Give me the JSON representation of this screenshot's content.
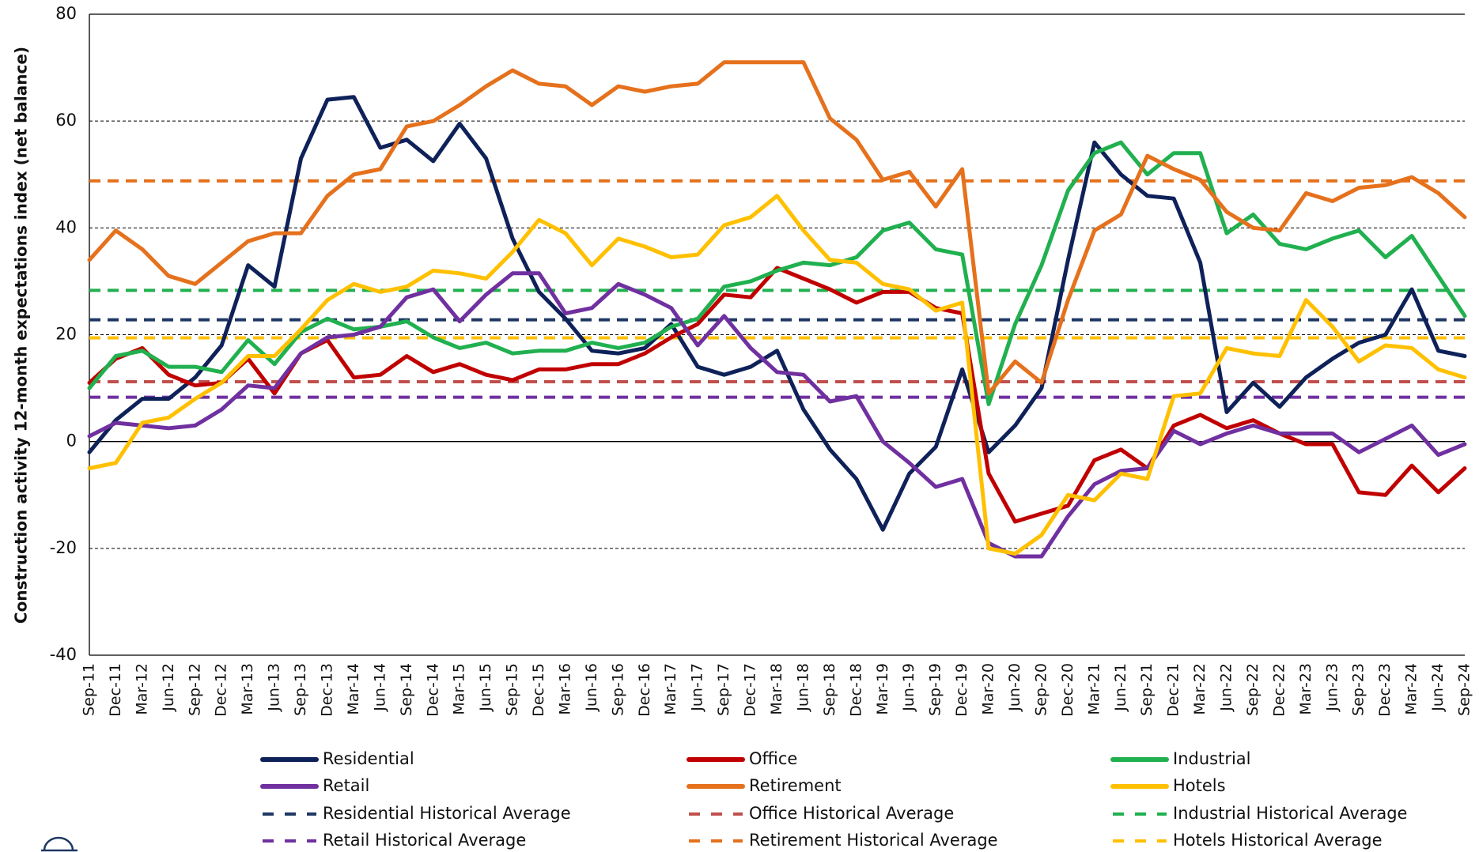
{
  "chart_data": {
    "type": "line",
    "y_label": "Construction activity 12-month expectations index (net balance)",
    "categories": [
      "Sep-11",
      "Dec-11",
      "Mar-12",
      "Jun-12",
      "Sep-12",
      "Dec-12",
      "Mar-13",
      "Jun-13",
      "Sep-13",
      "Dec-13",
      "Mar-14",
      "Jun-14",
      "Sep-14",
      "Dec-14",
      "Mar-15",
      "Jun-15",
      "Sep-15",
      "Dec-15",
      "Mar-16",
      "Jun-16",
      "Sep-16",
      "Dec-16",
      "Mar-17",
      "Jun-17",
      "Sep-17",
      "Dec-17",
      "Mar-18",
      "Jun-18",
      "Sep-18",
      "Dec-18",
      "Mar-19",
      "Jun-19",
      "Sep-19",
      "Dec-19",
      "Mar-20",
      "Jun-20",
      "Sep-20",
      "Dec-20",
      "Mar-21",
      "Jun-21",
      "Sep-21",
      "Dec-21",
      "Mar-22",
      "Jun-22",
      "Sep-22",
      "Dec-22",
      "Mar-23",
      "Jun-23",
      "Sep-23",
      "Dec-23",
      "Mar-24",
      "Jun-24",
      "Sep-24"
    ],
    "series": [
      {
        "name": "Residential",
        "color": "#0e2159",
        "values": [
          -2,
          4,
          8,
          8,
          12,
          18,
          33,
          29,
          53,
          64,
          64.5,
          55,
          56.5,
          52.5,
          59.5,
          53,
          38,
          28,
          23,
          17,
          16.5,
          17.5,
          22,
          14,
          12.5,
          14,
          17,
          6,
          -1.5,
          -7,
          -16.5,
          -6,
          -1,
          13.5,
          -2,
          3,
          10,
          34,
          56,
          50,
          46,
          45.5,
          33.5,
          5.5,
          11,
          6.5,
          12,
          15.5,
          18.5,
          20,
          28.5,
          17,
          16
        ]
      },
      {
        "name": "Office",
        "color": "#c00000",
        "values": [
          11,
          15.5,
          17.5,
          12.5,
          10.5,
          11,
          15.5,
          9,
          16.5,
          19,
          12,
          12.5,
          16,
          13,
          14.5,
          12.5,
          11.5,
          13.5,
          13.5,
          14.5,
          14.5,
          16.5,
          19.5,
          22,
          27.5,
          27,
          32.5,
          30.5,
          28.5,
          26,
          28,
          28,
          25,
          24,
          -6,
          -15,
          -13.5,
          -12,
          -3.5,
          -1.5,
          -5,
          3,
          5,
          2.5,
          4,
          1.5,
          -0.5,
          -0.5,
          -9.5,
          -10,
          -4.5,
          -9.5,
          -5
        ]
      },
      {
        "name": "Industrial",
        "color": "#21b04f",
        "values": [
          10,
          16,
          17,
          14,
          14,
          13,
          19,
          14.5,
          20.5,
          23,
          21,
          21.5,
          22.5,
          19.5,
          17.5,
          18.5,
          16.5,
          17,
          17,
          18.5,
          17.5,
          18.5,
          21.5,
          23,
          29,
          30,
          32,
          33.5,
          33,
          34.5,
          39.5,
          41,
          36,
          35,
          7,
          22,
          33,
          47,
          54,
          56,
          50,
          54,
          54,
          39,
          42.5,
          37,
          36,
          38,
          39.5,
          34.5,
          38.5,
          31,
          23.5
        ]
      },
      {
        "name": "Retail",
        "color": "#7030a0",
        "values": [
          1,
          3.5,
          3,
          2.5,
          3,
          6,
          10.5,
          10,
          16.5,
          19.5,
          20,
          21.5,
          27,
          28.5,
          22.5,
          27.5,
          31.5,
          31.5,
          24,
          25,
          29.5,
          27.5,
          25,
          18,
          23.5,
          17.5,
          13,
          12.5,
          7.5,
          8.5,
          0,
          -4,
          -8.5,
          -7,
          -19,
          -21.5,
          -21.5,
          -14,
          -8,
          -5.5,
          -5,
          2,
          -0.5,
          1.5,
          3,
          1.5,
          1.5,
          1.5,
          -2,
          0.5,
          3,
          -2.5,
          -0.5
        ]
      },
      {
        "name": "Retirement",
        "color": "#e5711d",
        "values": [
          34,
          39.5,
          36,
          31,
          29.5,
          33.5,
          37.5,
          39,
          39,
          46,
          50,
          51,
          59,
          60,
          63,
          66.5,
          69.5,
          67,
          66.5,
          63,
          66.5,
          65.5,
          66.5,
          67,
          71,
          71,
          71,
          71,
          60.5,
          56.5,
          49,
          50.5,
          44,
          51,
          9,
          15,
          11,
          26.5,
          39.5,
          42.5,
          53.5,
          51,
          49,
          43,
          40,
          39.5,
          46.5,
          45,
          47.5,
          48,
          49.5,
          46.5,
          42
        ]
      },
      {
        "name": "Hotels",
        "color": "#ffc000",
        "values": [
          -5,
          -4,
          3.5,
          4.5,
          8,
          11,
          16,
          16,
          21,
          26.5,
          29.5,
          28,
          29,
          32,
          31.5,
          30.5,
          35.5,
          41.5,
          39,
          33,
          38,
          36.5,
          34.5,
          35,
          40.5,
          42,
          46,
          39.5,
          34,
          33.5,
          29.5,
          28.5,
          24.5,
          26,
          -20,
          -21,
          -17.5,
          -10,
          -11,
          -6,
          -7,
          8.5,
          9,
          17.5,
          16.5,
          16,
          26.5,
          21.5,
          15,
          18,
          17.5,
          13.5,
          12
        ]
      }
    ],
    "reference_lines": [
      {
        "name": "Residential Historical Average",
        "color": "#1f3864",
        "value": 22.8
      },
      {
        "name": "Office Historical Average",
        "color": "#c0504d",
        "value": 11.2
      },
      {
        "name": "Industrial Historical Average",
        "color": "#21b04f",
        "value": 28.3
      },
      {
        "name": "Retail Historical Average",
        "color": "#7030a0",
        "value": 8.3
      },
      {
        "name": "Retirement Historical Average",
        "color": "#e5711d",
        "value": 48.8
      },
      {
        "name": "Hotels Historical Average",
        "color": "#ffc000",
        "value": 19.4
      }
    ],
    "ylim": [
      -40,
      80
    ],
    "yticks": [
      -40,
      -20,
      0,
      20,
      40,
      60,
      80
    ],
    "grid": true
  }
}
